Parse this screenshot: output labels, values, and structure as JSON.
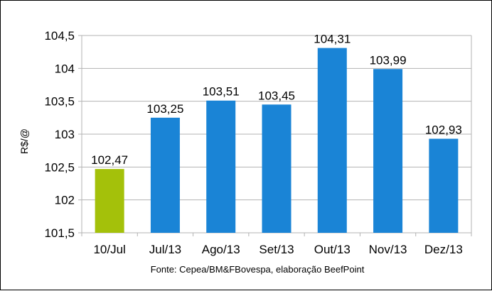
{
  "chart_data": {
    "type": "bar",
    "categories": [
      "10/Jul",
      "Jul/13",
      "Ago/13",
      "Set/13",
      "Out/13",
      "Nov/13",
      "Dez/13"
    ],
    "values": [
      102.47,
      103.25,
      103.51,
      103.45,
      104.31,
      103.99,
      102.93
    ],
    "value_labels": [
      "102,47",
      "103,25",
      "103,51",
      "103,45",
      "104,31",
      "103,99",
      "102,93"
    ],
    "bar_colors": [
      "#a4c10a",
      "#1a84d6",
      "#1a84d6",
      "#1a84d6",
      "#1a84d6",
      "#1a84d6",
      "#1a84d6"
    ],
    "ylabel": "R$/@",
    "ylim": [
      101.5,
      104.5
    ],
    "y_ticks": [
      101.5,
      102,
      102.5,
      103,
      103.5,
      104,
      104.5
    ],
    "y_tick_labels": [
      "101,5",
      "102",
      "102,5",
      "103",
      "103,5",
      "104",
      "104,5"
    ],
    "grid": true,
    "legend": "none",
    "source_note": "Fonte: Cepea/BM&FBovespa, elaboração BeefPoint"
  }
}
